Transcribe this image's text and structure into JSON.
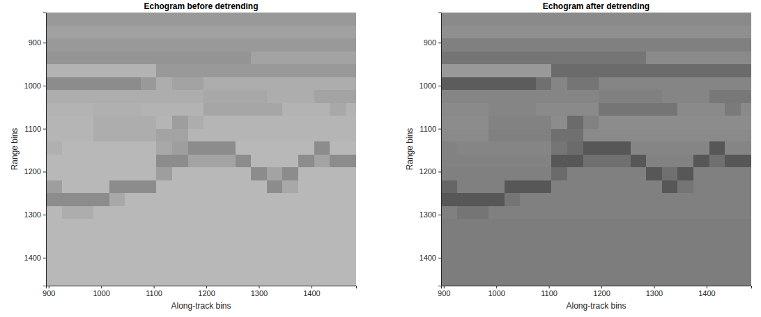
{
  "chart_data": [
    {
      "type": "heatmap",
      "title": "Echogram before detrending",
      "x_label": "Along-track bins",
      "y_label": "Range bins",
      "xlim": [
        895,
        1485
      ],
      "ylim": [
        830,
        1465
      ],
      "xticks": [
        900,
        1000,
        1100,
        1200,
        1300,
        1400
      ],
      "yticks": [
        900,
        1000,
        1100,
        1200,
        1300,
        1400
      ],
      "zlim": [
        0,
        100
      ],
      "x": [
        910,
        940,
        970,
        1000,
        1030,
        1060,
        1090,
        1120,
        1150,
        1180,
        1210,
        1240,
        1270,
        1300,
        1330,
        1360,
        1390,
        1420,
        1450,
        1480
      ],
      "y": [
        845,
        875,
        905,
        935,
        965,
        995,
        1025,
        1055,
        1085,
        1115,
        1145,
        1175,
        1205,
        1235,
        1265,
        1295,
        1325,
        1355,
        1385,
        1415,
        1445,
        1475
      ],
      "cells": [
        [
          60,
          60,
          60,
          60,
          60,
          60,
          60,
          60,
          60,
          60,
          60,
          60,
          60,
          60,
          60,
          60,
          60,
          60,
          60,
          60
        ],
        [
          63,
          63,
          63,
          63,
          63,
          63,
          63,
          63,
          63,
          63,
          63,
          63,
          63,
          63,
          63,
          63,
          63,
          63,
          63,
          63
        ],
        [
          60,
          60,
          60,
          60,
          60,
          60,
          60,
          60,
          60,
          60,
          60,
          60,
          60,
          60,
          60,
          60,
          60,
          60,
          60,
          60
        ],
        [
          58,
          58,
          58,
          58,
          58,
          58,
          58,
          58,
          58,
          58,
          58,
          58,
          58,
          64,
          64,
          64,
          64,
          64,
          64,
          64
        ],
        [
          70,
          70,
          70,
          70,
          70,
          70,
          70,
          60,
          60,
          60,
          60,
          60,
          60,
          60,
          60,
          60,
          60,
          60,
          60,
          60
        ],
        [
          55,
          55,
          55,
          55,
          55,
          55,
          60,
          68,
          64,
          64,
          68,
          68,
          68,
          68,
          68,
          68,
          68,
          68,
          68,
          68
        ],
        [
          68,
          68,
          68,
          68,
          68,
          68,
          68,
          68,
          68,
          68,
          66,
          66,
          66,
          66,
          68,
          68,
          68,
          64,
          64,
          64
        ],
        [
          70,
          70,
          70,
          69,
          69,
          69,
          70,
          70,
          70,
          70,
          65,
          65,
          65,
          65,
          65,
          70,
          70,
          70,
          66,
          70
        ],
        [
          71,
          71,
          71,
          68,
          68,
          68,
          68,
          71,
          62,
          68,
          71,
          71,
          71,
          71,
          71,
          71,
          71,
          71,
          71,
          71
        ],
        [
          71,
          71,
          71,
          68,
          68,
          68,
          68,
          64,
          64,
          71,
          71,
          71,
          71,
          71,
          71,
          71,
          71,
          71,
          71,
          71
        ],
        [
          69,
          72,
          72,
          72,
          72,
          72,
          72,
          66,
          62,
          55,
          55,
          55,
          72,
          72,
          72,
          72,
          72,
          55,
          72,
          72
        ],
        [
          72,
          72,
          72,
          72,
          72,
          72,
          72,
          55,
          55,
          64,
          64,
          64,
          55,
          72,
          72,
          72,
          55,
          64,
          55,
          55
        ],
        [
          72,
          72,
          72,
          72,
          72,
          72,
          72,
          62,
          72,
          72,
          72,
          72,
          72,
          55,
          64,
          55,
          72,
          72,
          72,
          72
        ],
        [
          62,
          72,
          72,
          72,
          55,
          55,
          55,
          72,
          72,
          72,
          72,
          72,
          72,
          72,
          55,
          66,
          72,
          72,
          72,
          72
        ],
        [
          55,
          55,
          55,
          55,
          66,
          72,
          72,
          72,
          72,
          72,
          72,
          72,
          72,
          72,
          72,
          72,
          72,
          72,
          72,
          72
        ],
        [
          72,
          68,
          68,
          72,
          72,
          72,
          72,
          72,
          72,
          72,
          72,
          72,
          72,
          72,
          72,
          72,
          72,
          72,
          72,
          72
        ],
        [
          72,
          72,
          72,
          72,
          72,
          72,
          72,
          72,
          72,
          72,
          72,
          72,
          72,
          72,
          72,
          72,
          72,
          72,
          72,
          72
        ],
        [
          72,
          72,
          72,
          72,
          72,
          72,
          72,
          72,
          72,
          72,
          72,
          72,
          72,
          72,
          72,
          72,
          72,
          72,
          72,
          72
        ],
        [
          72,
          72,
          72,
          72,
          72,
          72,
          72,
          72,
          72,
          72,
          72,
          72,
          72,
          72,
          72,
          72,
          72,
          72,
          72,
          72
        ],
        [
          72,
          72,
          72,
          72,
          72,
          72,
          72,
          72,
          72,
          72,
          72,
          72,
          72,
          72,
          72,
          72,
          72,
          72,
          72,
          72
        ],
        [
          72,
          72,
          72,
          72,
          72,
          72,
          72,
          72,
          72,
          72,
          72,
          72,
          72,
          72,
          72,
          72,
          72,
          72,
          72,
          72
        ],
        [
          72,
          72,
          72,
          72,
          72,
          72,
          72,
          72,
          72,
          72,
          72,
          72,
          72,
          72,
          72,
          72,
          72,
          72,
          72,
          72
        ]
      ]
    },
    {
      "type": "heatmap",
      "title": "Echogram after detrending",
      "x_label": "Along-track bins",
      "y_label": "Range bins",
      "xlim": [
        895,
        1485
      ],
      "ylim": [
        830,
        1465
      ],
      "xticks": [
        900,
        1000,
        1100,
        1200,
        1300,
        1400
      ],
      "yticks": [
        900,
        1000,
        1100,
        1200,
        1300,
        1400
      ],
      "zlim": [
        0,
        100
      ],
      "x": [
        910,
        940,
        970,
        1000,
        1030,
        1060,
        1090,
        1120,
        1150,
        1180,
        1210,
        1240,
        1270,
        1300,
        1330,
        1360,
        1390,
        1420,
        1450,
        1480
      ],
      "y": [
        845,
        875,
        905,
        935,
        965,
        995,
        1025,
        1055,
        1085,
        1115,
        1145,
        1175,
        1205,
        1235,
        1265,
        1295,
        1325,
        1355,
        1385,
        1415,
        1445,
        1475
      ],
      "cells": [
        [
          54,
          54,
          54,
          54,
          54,
          54,
          54,
          54,
          54,
          54,
          54,
          54,
          54,
          54,
          54,
          54,
          54,
          54,
          54,
          54
        ],
        [
          56,
          56,
          56,
          56,
          56,
          56,
          56,
          56,
          56,
          56,
          56,
          56,
          56,
          56,
          56,
          56,
          56,
          56,
          56,
          56
        ],
        [
          50,
          50,
          50,
          50,
          50,
          50,
          50,
          50,
          50,
          50,
          50,
          50,
          50,
          50,
          50,
          50,
          50,
          50,
          50,
          50
        ],
        [
          46,
          46,
          46,
          46,
          46,
          46,
          46,
          46,
          46,
          46,
          46,
          46,
          46,
          54,
          54,
          54,
          54,
          54,
          54,
          54
        ],
        [
          60,
          60,
          60,
          60,
          60,
          60,
          60,
          42,
          42,
          42,
          42,
          42,
          42,
          42,
          42,
          42,
          42,
          42,
          42,
          42
        ],
        [
          36,
          36,
          36,
          36,
          36,
          36,
          44,
          52,
          46,
          46,
          52,
          52,
          52,
          52,
          52,
          52,
          52,
          52,
          52,
          52
        ],
        [
          52,
          52,
          52,
          52,
          52,
          52,
          52,
          52,
          52,
          52,
          50,
          50,
          50,
          50,
          52,
          52,
          52,
          47,
          47,
          47
        ],
        [
          54,
          54,
          54,
          52,
          52,
          52,
          54,
          54,
          54,
          54,
          46,
          46,
          46,
          46,
          46,
          54,
          54,
          54,
          48,
          54
        ],
        [
          55,
          55,
          55,
          51,
          51,
          51,
          51,
          55,
          42,
          51,
          55,
          55,
          55,
          55,
          55,
          55,
          55,
          55,
          55,
          55
        ],
        [
          54,
          54,
          54,
          50,
          50,
          50,
          50,
          44,
          44,
          54,
          54,
          54,
          54,
          54,
          54,
          54,
          54,
          54,
          54,
          54
        ],
        [
          51,
          52,
          52,
          52,
          52,
          52,
          52,
          46,
          42,
          34,
          34,
          34,
          52,
          52,
          52,
          52,
          52,
          34,
          52,
          52
        ],
        [
          51,
          51,
          51,
          51,
          51,
          51,
          51,
          34,
          34,
          44,
          44,
          44,
          34,
          51,
          51,
          51,
          34,
          44,
          34,
          34
        ],
        [
          50,
          50,
          50,
          50,
          50,
          50,
          50,
          42,
          50,
          50,
          50,
          50,
          50,
          34,
          44,
          34,
          50,
          50,
          50,
          50
        ],
        [
          40,
          50,
          50,
          50,
          34,
          34,
          34,
          50,
          50,
          50,
          50,
          50,
          50,
          50,
          34,
          46,
          50,
          50,
          50,
          50
        ],
        [
          34,
          34,
          34,
          34,
          46,
          50,
          50,
          50,
          50,
          50,
          50,
          50,
          50,
          50,
          50,
          50,
          50,
          50,
          50,
          50
        ],
        [
          50,
          46,
          46,
          50,
          50,
          50,
          50,
          50,
          50,
          50,
          50,
          50,
          50,
          50,
          50,
          50,
          50,
          50,
          50,
          50
        ],
        [
          49,
          49,
          49,
          49,
          49,
          49,
          49,
          49,
          49,
          49,
          49,
          49,
          49,
          49,
          49,
          49,
          49,
          49,
          49,
          49
        ],
        [
          49,
          49,
          49,
          49,
          49,
          49,
          49,
          49,
          49,
          49,
          49,
          49,
          49,
          49,
          49,
          49,
          49,
          49,
          49,
          49
        ],
        [
          49,
          49,
          49,
          49,
          49,
          49,
          49,
          49,
          49,
          49,
          49,
          49,
          49,
          49,
          49,
          49,
          49,
          49,
          49,
          49
        ],
        [
          49,
          49,
          49,
          49,
          49,
          49,
          49,
          49,
          49,
          49,
          49,
          49,
          49,
          49,
          49,
          49,
          49,
          49,
          49,
          49
        ],
        [
          49,
          49,
          49,
          49,
          49,
          49,
          49,
          49,
          49,
          49,
          49,
          49,
          49,
          49,
          49,
          49,
          49,
          49,
          49,
          49
        ],
        [
          49,
          49,
          49,
          49,
          49,
          49,
          49,
          49,
          49,
          49,
          49,
          49,
          49,
          49,
          49,
          49,
          49,
          49,
          49,
          49
        ]
      ]
    }
  ]
}
